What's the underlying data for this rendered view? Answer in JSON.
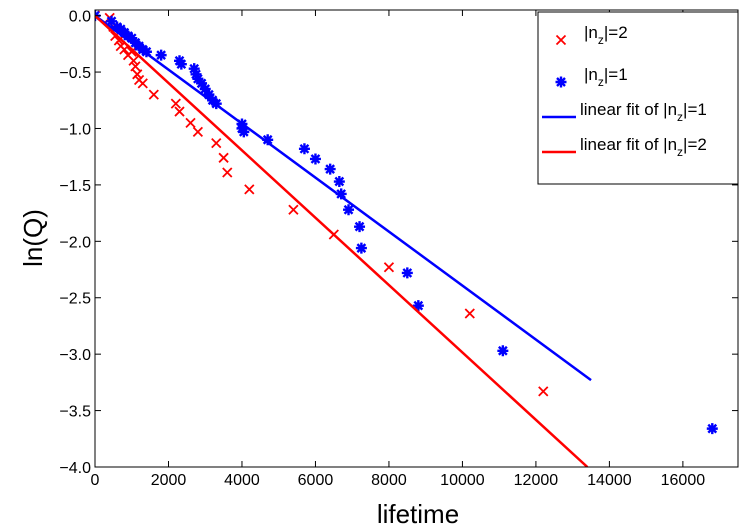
{
  "chart_data": {
    "type": "scatter",
    "title": "",
    "xlabel": "lifetime",
    "ylabel": "ln(Q)",
    "xlim": [
      0,
      17500
    ],
    "ylim": [
      -4.0,
      0.05
    ],
    "xticks": [
      0,
      2000,
      4000,
      6000,
      8000,
      10000,
      12000,
      14000,
      16000
    ],
    "yticks": [
      0.0,
      -0.5,
      -1.0,
      -1.5,
      -2.0,
      -2.5,
      -3.0,
      -3.5,
      -4.0
    ],
    "xtick_labels": [
      "0",
      "2000",
      "4000",
      "6000",
      "8000",
      "10000",
      "12000",
      "14000",
      "16000"
    ],
    "ytick_labels": [
      "0.0",
      "−0.5",
      "−1.0",
      "−1.5",
      "−2.0",
      "−2.5",
      "−3.0",
      "−3.5",
      "−4.0"
    ],
    "grid": false,
    "legend_position": "top-right",
    "series": [
      {
        "name": "|n_z|=2",
        "legend_main": "|n",
        "legend_sub": "z",
        "legend_tail": "|=2",
        "kind": "scatter",
        "marker": "x",
        "color": "#ff0000",
        "points": [
          [
            0,
            0.0
          ],
          [
            400,
            -0.02
          ],
          [
            500,
            -0.1
          ],
          [
            550,
            -0.18
          ],
          [
            650,
            -0.22
          ],
          [
            700,
            -0.27
          ],
          [
            800,
            -0.3
          ],
          [
            900,
            -0.35
          ],
          [
            1000,
            -0.32
          ],
          [
            1050,
            -0.4
          ],
          [
            1100,
            -0.45
          ],
          [
            1150,
            -0.52
          ],
          [
            1200,
            -0.57
          ],
          [
            1300,
            -0.6
          ],
          [
            1600,
            -0.7
          ],
          [
            2200,
            -0.78
          ],
          [
            2300,
            -0.85
          ],
          [
            2600,
            -0.95
          ],
          [
            2800,
            -1.03
          ],
          [
            3300,
            -1.13
          ],
          [
            3500,
            -1.26
          ],
          [
            3600,
            -1.39
          ],
          [
            4200,
            -1.54
          ],
          [
            5400,
            -1.72
          ],
          [
            6500,
            -1.94
          ],
          [
            8000,
            -2.23
          ],
          [
            10200,
            -2.64
          ],
          [
            12200,
            -3.33
          ]
        ]
      },
      {
        "name": "|n_z|=1",
        "legend_main": "|n",
        "legend_sub": "z",
        "legend_tail": "|=1",
        "kind": "scatter",
        "marker": "asterisk",
        "color": "#0000ff",
        "points": [
          [
            0,
            0.0
          ],
          [
            450,
            -0.05
          ],
          [
            600,
            -0.1
          ],
          [
            700,
            -0.12
          ],
          [
            800,
            -0.15
          ],
          [
            900,
            -0.18
          ],
          [
            1000,
            -0.2
          ],
          [
            1100,
            -0.24
          ],
          [
            1200,
            -0.27
          ],
          [
            1300,
            -0.3
          ],
          [
            1400,
            -0.32
          ],
          [
            1800,
            -0.35
          ],
          [
            2300,
            -0.4
          ],
          [
            2350,
            -0.43
          ],
          [
            2700,
            -0.47
          ],
          [
            2750,
            -0.52
          ],
          [
            2800,
            -0.56
          ],
          [
            2900,
            -0.6
          ],
          [
            3000,
            -0.65
          ],
          [
            3100,
            -0.7
          ],
          [
            3200,
            -0.75
          ],
          [
            3300,
            -0.78
          ],
          [
            4000,
            -0.96
          ],
          [
            4000,
            -1.0
          ],
          [
            4050,
            -1.03
          ],
          [
            4700,
            -1.1
          ],
          [
            5700,
            -1.18
          ],
          [
            6000,
            -1.27
          ],
          [
            6400,
            -1.36
          ],
          [
            6650,
            -1.47
          ],
          [
            6700,
            -1.58
          ],
          [
            6900,
            -1.72
          ],
          [
            7200,
            -1.87
          ],
          [
            7250,
            -2.06
          ],
          [
            8500,
            -2.28
          ],
          [
            8800,
            -2.57
          ],
          [
            11100,
            -2.97
          ],
          [
            16800,
            -3.66
          ]
        ]
      },
      {
        "name": "linear fit of |n_z|=1",
        "legend_main": "linear fit of |n",
        "legend_sub": "z",
        "legend_tail": "|=1",
        "kind": "line",
        "color": "#0000ff",
        "points": [
          [
            0,
            0.0
          ],
          [
            13500,
            -3.23
          ]
        ]
      },
      {
        "name": "linear fit of |n_z|=2",
        "legend_main": "linear fit of |n",
        "legend_sub": "z",
        "legend_tail": "|=2",
        "kind": "line",
        "color": "#ff0000",
        "points": [
          [
            0,
            0.0
          ],
          [
            13400,
            -4.0
          ]
        ]
      }
    ]
  }
}
